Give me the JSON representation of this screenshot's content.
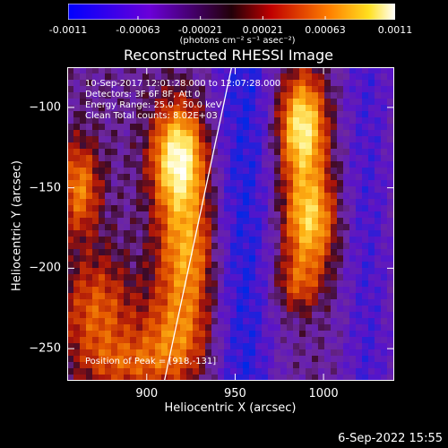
{
  "colorbar": {
    "ticks": [
      "-0.0011",
      "-0.00063",
      "-0.00021",
      "0.00021",
      "0.00063",
      "0.0011"
    ],
    "unit_label": "(photons cm⁻² s⁻¹ asec⁻²)",
    "range": [
      -0.0011,
      0.0011
    ]
  },
  "chart_data": {
    "type": "heatmap",
    "title": "Reconstructed RHESSI Image",
    "xlabel": "Heliocentric X (arcsec)",
    "ylabel": "Heliocentric Y (arcsec)",
    "xlim": [
      855,
      1040
    ],
    "ylim": [
      -270,
      -75
    ],
    "xticks": [
      900,
      950,
      1000
    ],
    "yticks": [
      -100,
      -150,
      -200,
      -250
    ],
    "limb_line": [
      [
        910,
        -270
      ],
      [
        948,
        -75
      ]
    ],
    "sources": [
      {
        "x": 918,
        "y": -131,
        "strength": 1.0
      },
      {
        "x": 988,
        "y": -115,
        "strength": 0.95
      },
      {
        "x": 990,
        "y": -175,
        "strength": 0.8
      },
      {
        "x": 922,
        "y": -195,
        "strength": 0.6
      },
      {
        "x": 862,
        "y": -150,
        "strength": 0.55
      },
      {
        "x": 872,
        "y": -230,
        "strength": 0.45
      }
    ],
    "info": {
      "time": "10-Sep-2017 12:01:28.000 to 12:07:28.000",
      "detectors": "Detectors: 3F 6F 8F, Att 0",
      "energy": "Energy Range: 25.0 - 50.0 keV",
      "clean": "Clean    Total counts: 8.02E+03",
      "peak": "Position of Peak = [918,-131]"
    }
  },
  "footer_date": "6-Sep-2022 15:55"
}
